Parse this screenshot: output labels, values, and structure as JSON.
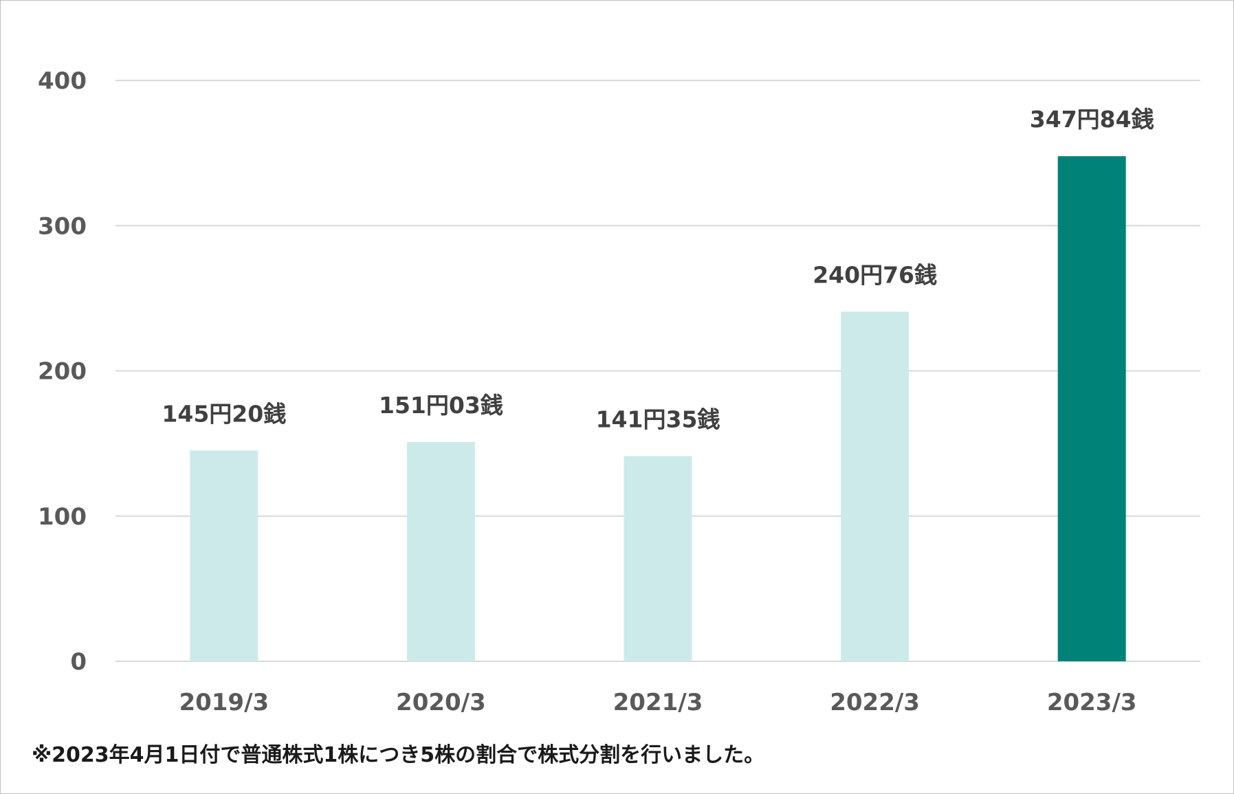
{
  "chart_data": {
    "type": "bar",
    "categories": [
      "2019/3",
      "2020/3",
      "2021/3",
      "2022/3",
      "2023/3"
    ],
    "values": [
      145.2,
      151.03,
      141.35,
      240.76,
      347.84
    ],
    "data_labels": [
      "145円20銭",
      "151円03銭",
      "141円35銭",
      "240円76銭",
      "347円84銭"
    ],
    "ylim": [
      0,
      400
    ],
    "yticks": [
      0,
      100,
      200,
      300,
      400
    ],
    "grid": true,
    "legend": "none",
    "colors": {
      "bar": "#cdeaea",
      "highlight_bar": "#008278",
      "grid": "#d9d9d9"
    },
    "highlight_index": 4,
    "title": "",
    "xlabel": "",
    "ylabel": ""
  },
  "footnote": "※2023年4月1日付で普通株式1株につき5株の割合で株式分割を行いました。"
}
